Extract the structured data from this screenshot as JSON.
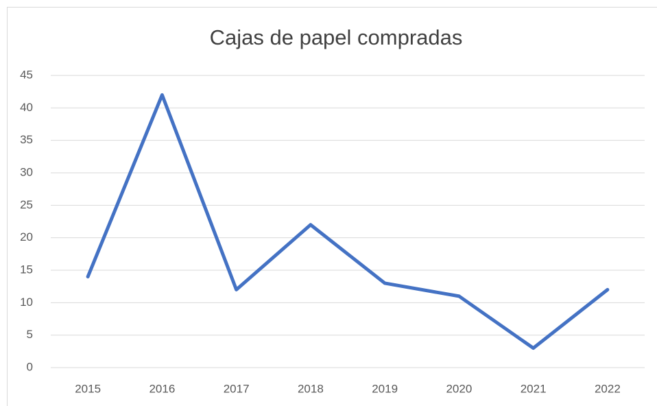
{
  "chart_data": {
    "type": "line",
    "title": "Cajas de papel compradas",
    "categories": [
      "2015",
      "2016",
      "2017",
      "2018",
      "2019",
      "2020",
      "2021",
      "2022"
    ],
    "values": [
      14,
      42,
      12,
      22,
      13,
      11,
      3,
      12
    ],
    "color": "#4472c4",
    "ylim": [
      0,
      45
    ],
    "yticks": [
      0,
      5,
      10,
      15,
      20,
      25,
      30,
      35,
      40,
      45
    ],
    "grid": true
  }
}
